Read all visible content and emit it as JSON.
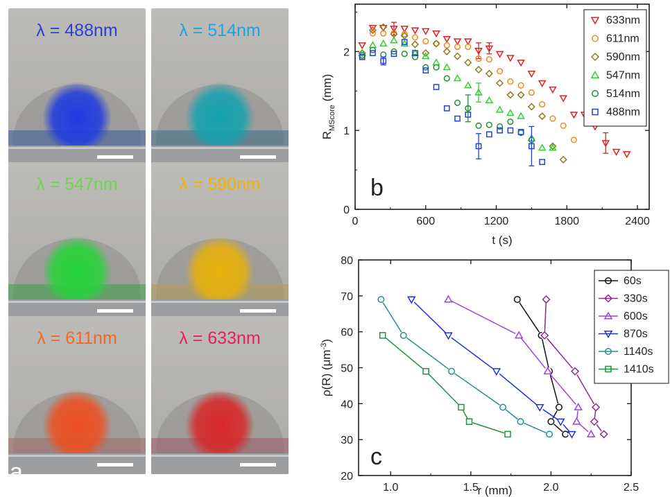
{
  "panel_a": {
    "letter": "a",
    "photos": [
      {
        "label": "λ = 488nm",
        "label_color": "#2b3fd8",
        "glow": "#1f3be0",
        "band": "#3b5a9a"
      },
      {
        "label": "λ = 514nm",
        "label_color": "#1aa6e0",
        "glow": "#15a3b0",
        "band": "#3f6c86"
      },
      {
        "label": "λ = 547nm",
        "label_color": "#6fd64a",
        "glow": "#26d43a",
        "band": "#3aa045"
      },
      {
        "label": "λ = 590nm",
        "label_color": "#f0b400",
        "glow": "#e8b10a",
        "band": "#b09a5a"
      },
      {
        "label": "λ = 611nm",
        "label_color": "#f26a22",
        "glow": "#ee5020",
        "band": "#a06a6a"
      },
      {
        "label": "λ = 633nm",
        "label_color": "#e8205a",
        "glow": "#d82828",
        "band": "#9a5a6a"
      }
    ]
  },
  "chart_data": [
    {
      "type": "scatter",
      "panel_letter": "b",
      "xlabel": "t (s)",
      "ylabel_main": "R",
      "ylabel_sub": "MScore",
      "ylabel_unit": " (mm)",
      "xlim": [
        0,
        2500
      ],
      "ylim": [
        0,
        2.6
      ],
      "xticks": [
        0,
        600,
        1200,
        1800,
        2400
      ],
      "yticks": [
        0,
        1,
        2
      ],
      "legend_position": "top-right",
      "series": [
        {
          "name": "633nm",
          "color": "#e02020",
          "marker": "triangle-down",
          "x": [
            60,
            150,
            240,
            330,
            420,
            510,
            600,
            690,
            780,
            870,
            960,
            1050,
            1140,
            1230,
            1320,
            1410,
            1500,
            1590,
            1680,
            1770,
            1860,
            1950,
            2040,
            2130,
            2220,
            2310
          ],
          "y": [
            2.08,
            2.3,
            2.3,
            2.29,
            2.29,
            2.27,
            2.26,
            2.23,
            2.16,
            2.13,
            2.13,
            2.01,
            2.04,
            1.97,
            1.92,
            1.86,
            1.72,
            1.6,
            1.52,
            1.41,
            1.2,
            1.2,
            1.05,
            0.84,
            0.73,
            0.7
          ],
          "errors": [
            null,
            null,
            null,
            0.08,
            null,
            null,
            null,
            null,
            null,
            null,
            null,
            0.1,
            0.07,
            null,
            null,
            null,
            null,
            null,
            null,
            null,
            null,
            null,
            null,
            0.13,
            null,
            null
          ]
        },
        {
          "name": "611nm",
          "color": "#f08a20",
          "marker": "circle",
          "x": [
            60,
            150,
            240,
            330,
            420,
            510,
            600,
            690,
            780,
            870,
            960,
            1050,
            1140,
            1230,
            1320,
            1410,
            1500,
            1590,
            1680,
            1770,
            1860
          ],
          "y": [
            1.93,
            2.23,
            2.23,
            2.23,
            2.22,
            2.18,
            2.13,
            2.1,
            2.08,
            2.06,
            2.06,
            1.91,
            1.9,
            1.75,
            1.62,
            1.57,
            1.48,
            1.33,
            1.15,
            1.06,
            0.88
          ],
          "errors": []
        },
        {
          "name": "590nm",
          "color": "#8c7a20",
          "marker": "diamond",
          "x": [
            60,
            150,
            240,
            330,
            420,
            510,
            600,
            690,
            780,
            870,
            960,
            1050,
            1140,
            1230,
            1320,
            1410,
            1500,
            1590,
            1680,
            1770
          ],
          "y": [
            1.98,
            2.27,
            2.31,
            2.22,
            2.2,
            2.09,
            1.98,
            2.1,
            2.0,
            1.94,
            1.86,
            1.77,
            1.72,
            1.6,
            1.45,
            1.45,
            1.3,
            1.18,
            0.8,
            0.63
          ],
          "errors": []
        },
        {
          "name": "547nm",
          "color": "#30d030",
          "marker": "triangle-up",
          "x": [
            60,
            150,
            240,
            330,
            420,
            510,
            600,
            690,
            780,
            870,
            960,
            1050,
            1140,
            1230,
            1320,
            1410,
            1500,
            1590,
            1680
          ],
          "y": [
            1.98,
            2.08,
            2.1,
            2.14,
            2.1,
            1.98,
            1.94,
            1.86,
            1.8,
            1.66,
            1.57,
            1.48,
            1.38,
            1.26,
            1.22,
            1.18,
            0.9,
            0.78,
            0.78
          ],
          "errors": [
            null,
            null,
            null,
            null,
            null,
            null,
            null,
            null,
            null,
            null,
            null,
            0.12,
            null,
            null,
            null,
            null,
            null,
            null,
            null
          ]
        },
        {
          "name": "514nm",
          "color": "#209030",
          "marker": "circle",
          "x": [
            60,
            150,
            240,
            330,
            420,
            510,
            600,
            690,
            780,
            870,
            960,
            1050,
            1140,
            1230,
            1320,
            1410,
            1500
          ],
          "y": [
            1.95,
            2.02,
            1.96,
            2.0,
            1.97,
            1.93,
            1.8,
            1.8,
            1.66,
            1.35,
            1.28,
            1.06,
            1.07,
            1.05,
            1.11,
            0.97,
            0.88
          ],
          "errors": [
            null,
            null,
            null,
            null,
            null,
            null,
            null,
            null,
            null,
            null,
            0.17,
            null,
            null,
            null,
            null,
            null,
            null
          ]
        },
        {
          "name": "488nm",
          "color": "#2040e0",
          "marker": "square",
          "x": [
            60,
            150,
            240,
            330,
            420,
            510,
            600,
            690,
            780,
            870,
            960,
            1050,
            1140,
            1230,
            1320,
            1410,
            1500,
            1590
          ],
          "y": [
            1.93,
            1.98,
            1.88,
            1.97,
            2.12,
            1.98,
            1.76,
            1.55,
            1.28,
            1.15,
            1.2,
            0.8,
            0.95,
            1.0,
            1.0,
            0.98,
            0.8,
            0.6
          ],
          "errors": [
            null,
            null,
            0.05,
            null,
            null,
            null,
            null,
            null,
            null,
            null,
            null,
            0.16,
            null,
            null,
            null,
            null,
            0.25,
            null
          ]
        }
      ]
    },
    {
      "type": "line",
      "panel_letter": "c",
      "xlabel": "r (mm)",
      "ylabel_main": "ρ(R) (μm",
      "ylabel_sup": "-3",
      "ylabel_close": ")",
      "xlim": [
        0.8,
        2.5
      ],
      "ylim": [
        20,
        80
      ],
      "xticks": [
        1.0,
        1.5,
        2.0,
        2.5
      ],
      "ytick_values": [
        20,
        30,
        40,
        50,
        60,
        70,
        80
      ],
      "legend_position": "top-right",
      "series": [
        {
          "name": "60s",
          "color": "#111111",
          "marker": "circle",
          "x": [
            1.79,
            1.94,
            1.99,
            2.05,
            2.0,
            2.09
          ],
          "y": [
            69,
            59,
            49,
            39,
            35,
            31.5
          ]
        },
        {
          "name": "330s",
          "color": "#8a2a8a",
          "marker": "diamond",
          "x": [
            1.97,
            1.96,
            2.15,
            2.28,
            2.27,
            2.33
          ],
          "y": [
            69,
            59,
            49,
            39,
            35,
            31.5
          ]
        },
        {
          "name": "600s",
          "color": "#a040e0",
          "marker": "triangle-up",
          "x": [
            1.36,
            1.8,
            1.98,
            2.17,
            2.16,
            2.25
          ],
          "y": [
            69,
            59,
            49,
            39,
            35,
            31.5
          ]
        },
        {
          "name": "870s",
          "color": "#2030e0",
          "marker": "triangle-down",
          "x": [
            1.13,
            1.36,
            1.66,
            1.93,
            2.06,
            2.13
          ],
          "y": [
            69,
            59,
            49,
            39,
            35,
            31.5
          ]
        },
        {
          "name": "1140s",
          "color": "#209090",
          "marker": "circle",
          "x": [
            0.94,
            1.08,
            1.38,
            1.7,
            1.81,
            1.99
          ],
          "y": [
            69,
            59,
            49,
            39,
            35,
            31.5
          ]
        },
        {
          "name": "1410s",
          "color": "#209040",
          "marker": "square",
          "x": [
            0.95,
            1.22,
            1.44,
            1.49,
            1.73
          ],
          "y": [
            59,
            49,
            39,
            35,
            31.5
          ]
        }
      ]
    }
  ]
}
